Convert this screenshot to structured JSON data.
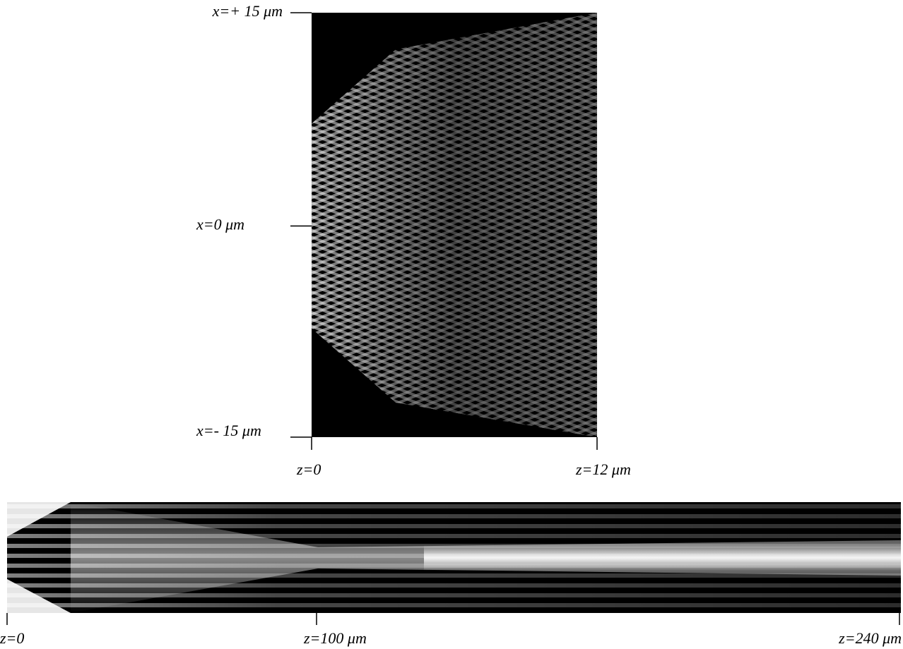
{
  "top_panel": {
    "x_labels": [
      "x=+ 15 μm",
      "x=0 μm",
      "x=- 15 μm"
    ],
    "z_labels": [
      "z=0",
      "z=12 μm"
    ]
  },
  "bottom_panel": {
    "z_labels": [
      "z=0",
      "z=100 μm",
      "z=240 μm"
    ]
  }
}
